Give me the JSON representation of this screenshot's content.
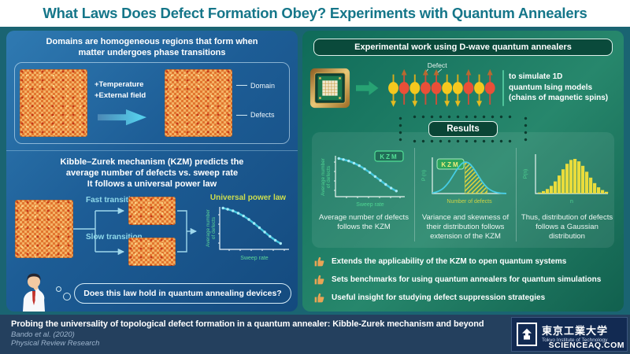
{
  "header": {
    "title": "What Laws Does Defect Formation Obey? Experiments with Quantum Annealers"
  },
  "colors": {
    "title_teal": "#157689",
    "left_panel_blue": "#1d5d96",
    "right_panel_green": "#27876c",
    "curve_cyan": "#45cce4",
    "axis_green": "#4fd492",
    "power_law_yellow_green": "#cede4d",
    "histogram_yellow": "#e9dc3c",
    "spin_yellow": "#f4c81e",
    "spin_red": "#ea4f38",
    "thumb_orange": "#e8a455",
    "footer_navy": "#24405e",
    "lattice_orange": "#e8873c"
  },
  "left": {
    "domains": {
      "line1": "Domains are homogeneous regions that form when",
      "line2": "matter undergoes phase transitions",
      "temperature": "+Temperature",
      "field": "+External field",
      "domain_label": "Domain",
      "defects_label": "Defects"
    },
    "kzm": {
      "line1": "Kibble–Zurek mechanism (KZM) predicts the",
      "line2": "average number of defects vs. sweep rate",
      "line3": "It follows a universal power law",
      "fast": "Fast transition",
      "slow": "Slow transition",
      "plot": {
        "title": "Universal power law",
        "ylabel_a": "Average number",
        "ylabel_b": "of defects",
        "xlabel": "Sweep rate"
      }
    },
    "question": "Does this law hold in quantum annealing devices?"
  },
  "right": {
    "header": "Experimental work using D-wave quantum annealers",
    "sim": {
      "defect_label": "Defect",
      "line1": "to simulate 1D",
      "line2": "quantum Ising models",
      "line3": "(chains of magnetic spins)",
      "spins": [
        "down",
        "up",
        "down",
        "up",
        "up",
        "down",
        "down",
        "up",
        "down",
        "up"
      ]
    },
    "results_label": "Results",
    "plots": [
      {
        "badge": "KZM",
        "ylabel_a": "Average number",
        "ylabel_b": "of defects",
        "xlabel": "Sweep rate",
        "caption": "Average number of defects follows the KZM"
      },
      {
        "badge": "KZM",
        "ylabel": "P (n)",
        "xlabel": "Number of defects",
        "caption": "Variance and skewness of their distribution follows extension of the KZM"
      },
      {
        "ylabel": "P(n)",
        "xlabel": "n",
        "caption": "Thus, distribution of defects follows a Gaussian distribution"
      }
    ],
    "takeaways": [
      "Extends the applicability of the KZM to open quantum systems",
      "Sets benchmarks for using quantum annealers for quantum simulations",
      "Useful insight for studying defect suppression strategies"
    ]
  },
  "footer": {
    "paper_title": "Probing the universality of topological defect formation in a quantum annealer: Kibble-Zurek mechanism and beyond",
    "authors": "Bando et al. (2020)",
    "journal": "Physical Review Research",
    "logo_jp": "東京工業大学",
    "logo_en": "Tokyo Institute of Technology",
    "watermark": "SCIENCEAQ.COM"
  },
  "chart_data": [
    {
      "type": "scatter",
      "title": "Universal power law",
      "xlabel": "Sweep rate",
      "ylabel": "Average number of defects",
      "points": [
        [
          0.05,
          0.97
        ],
        [
          0.12,
          0.94
        ],
        [
          0.2,
          0.9
        ],
        [
          0.28,
          0.84
        ],
        [
          0.36,
          0.77
        ],
        [
          0.44,
          0.68
        ],
        [
          0.52,
          0.58
        ],
        [
          0.6,
          0.47
        ],
        [
          0.68,
          0.36
        ],
        [
          0.76,
          0.25
        ],
        [
          0.84,
          0.15
        ],
        [
          0.92,
          0.07
        ]
      ],
      "note": "schematic decreasing power-law curve, shown twice (left panel and first results plot)"
    },
    {
      "type": "area",
      "xlabel": "Number of defects",
      "ylabel": "P (n)",
      "mu": 0.45,
      "sigma": 0.16,
      "hatch_range": [
        0.44,
        0.74
      ],
      "note": "schematic defect-number distribution with hatched variance/skewness region"
    },
    {
      "type": "bar",
      "xlabel": "n",
      "ylabel": "P(n)",
      "values": [
        0.03,
        0.07,
        0.13,
        0.22,
        0.35,
        0.52,
        0.7,
        0.86,
        0.97,
        1.0,
        0.93,
        0.8,
        0.63,
        0.46,
        0.3,
        0.18,
        0.1,
        0.05
      ],
      "note": "schematic Gaussian histogram of defect distribution"
    }
  ]
}
